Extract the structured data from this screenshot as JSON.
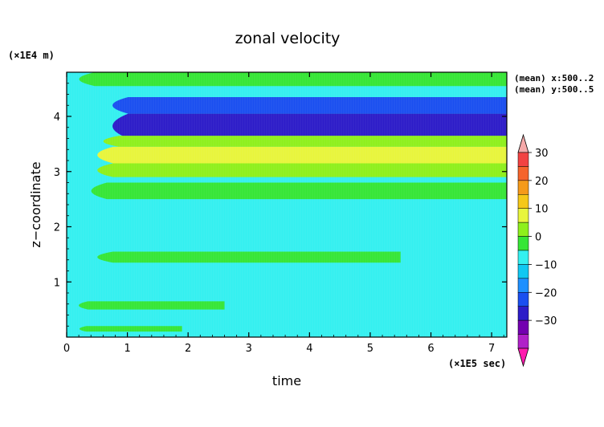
{
  "chart_data": {
    "type": "heatmap",
    "title": "zonal velocity",
    "xlabel": "time",
    "ylabel": "z−coordinate",
    "x_unit": "(×1E5 sec)",
    "y_unit": "(×1E4 m)",
    "xlim": [
      0,
      7.25
    ],
    "ylim": [
      0,
      4.8
    ],
    "x_ticks": [
      "0",
      "1",
      "2",
      "3",
      "4",
      "5",
      "6",
      "7"
    ],
    "y_ticks": [
      "1",
      "2",
      "3",
      "4"
    ],
    "annotations": [
      "(mean) x:500..2",
      "(mean) y:500..5"
    ],
    "colorbar": {
      "levels": [
        -35,
        -30,
        -25,
        -20,
        -15,
        -10,
        -5,
        0,
        5,
        10,
        15,
        20,
        25,
        30,
        35
      ],
      "tick_labels": [
        "30",
        "20",
        "10",
        "0",
        "−10",
        "−20",
        "−30"
      ],
      "colors": [
        "#ff1aae",
        "#b021c8",
        "#7300b0",
        "#2d1cc8",
        "#1a4ff0",
        "#1e90ff",
        "#10c8f2",
        "#34f0f0",
        "#36e636",
        "#8ef01c",
        "#e8f53c",
        "#f5c818",
        "#f59a1a",
        "#f5642c",
        "#f24242",
        "#f5a9a9"
      ],
      "extend": "both"
    },
    "bands": [
      {
        "y0": 4.55,
        "y1": 4.8,
        "x0": 0,
        "x1": 7.25,
        "value": 2
      },
      {
        "y0": 4.05,
        "y1": 4.35,
        "x0": 0.55,
        "x1": 7.25,
        "value": -20
      },
      {
        "y0": 3.6,
        "y1": 4.05,
        "x0": 0.55,
        "x1": 7.25,
        "value": -25
      },
      {
        "y0": 3.45,
        "y1": 3.65,
        "x0": 0.4,
        "x1": 7.25,
        "value": 7
      },
      {
        "y0": 3.15,
        "y1": 3.45,
        "x0": 0.3,
        "x1": 7.25,
        "value": 12
      },
      {
        "y0": 2.9,
        "y1": 3.15,
        "x0": 0.3,
        "x1": 7.25,
        "value": 7
      },
      {
        "y0": 2.5,
        "y1": 2.8,
        "x0": 0.2,
        "x1": 7.25,
        "value": 3
      },
      {
        "y0": 1.35,
        "y1": 1.55,
        "x0": 0.3,
        "x1": 5.5,
        "value": 2
      },
      {
        "y0": 0.5,
        "y1": 0.65,
        "x0": 0.1,
        "x1": 2.6,
        "value": 2
      },
      {
        "y0": 0.1,
        "y1": 0.2,
        "x0": 0.15,
        "x1": 1.9,
        "value": 2
      }
    ]
  }
}
